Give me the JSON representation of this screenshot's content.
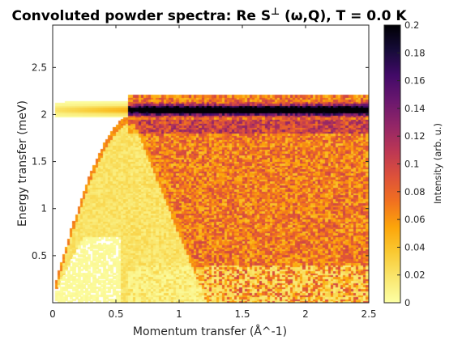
{
  "chart_data": {
    "type": "heatmap",
    "title_parts": {
      "before": "Convoluted powder spectra: Re S",
      "superscript": "⊥",
      "after": " (ω,Q), T =   0.0 K"
    },
    "xlabel": "Momentum transfer (Å^-1)",
    "ylabel": "Energy transfer (meV)",
    "xlim": [
      0,
      2.5
    ],
    "ylim": [
      0,
      2.95
    ],
    "xticks": [
      0,
      0.5,
      1,
      1.5,
      2,
      2.5
    ],
    "xtick_labels": [
      "0",
      "0.5",
      "1",
      "1.5",
      "2",
      "2.5"
    ],
    "yticks": [
      0.5,
      1,
      1.5,
      2,
      2.5
    ],
    "ytick_labels": [
      "0.5",
      "1",
      "1.5",
      "2",
      "2.5"
    ],
    "colorbar": {
      "label": "Intensity (arb. u.)",
      "limits": [
        0,
        0.2
      ],
      "ticks": [
        0,
        0.02,
        0.04,
        0.06,
        0.08,
        0.1,
        0.12,
        0.14,
        0.16,
        0.18,
        0.2
      ],
      "tick_labels": [
        "0",
        "0.02",
        "0.04",
        "0.06",
        "0.08",
        "0.1",
        "0.12",
        "0.14",
        "0.16",
        "0.18",
        "0.2"
      ],
      "colormap": "inferno (reversed)",
      "colors": [
        "#fcffa4",
        "#f9e66e",
        "#f9c932",
        "#fca50a",
        "#f1711f",
        "#dd513a",
        "#bc3754",
        "#932667",
        "#6a176e",
        "#420a68",
        "#160b39",
        "#000004"
      ]
    },
    "features": {
      "flat_band_energy_meV": 2.05,
      "dispersive_mode_peak_Q": 0.65,
      "dispersive_mode_zero_Q": 1.1,
      "intensity_range": [
        0,
        0.2
      ]
    }
  }
}
